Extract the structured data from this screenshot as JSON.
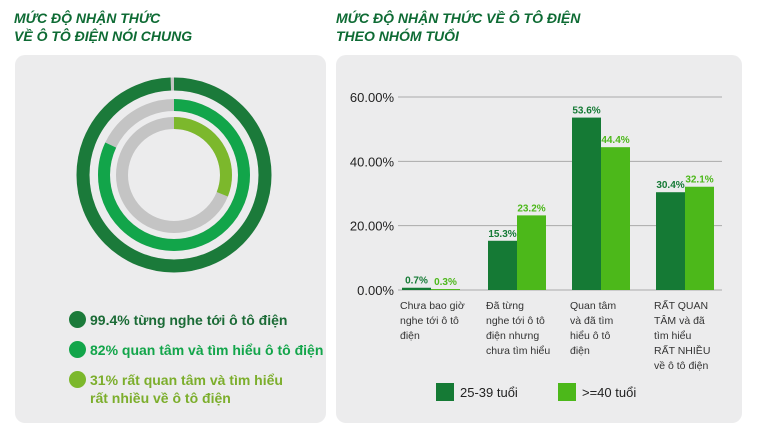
{
  "left": {
    "title_line1": "MỨC ĐỘ NHẬN THỨC",
    "title_line2": "VỀ Ô TÔ ĐIỆN NÓI CHUNG",
    "rings": [
      {
        "value": 99.4,
        "color": "#1b7a3a",
        "label": "99.4% từng nghe tới ô tô điện"
      },
      {
        "value": 82,
        "color": "#12a54a",
        "label": "82% quan tâm và tìm hiểu ô tô điện"
      },
      {
        "value": 31,
        "color": "#7cb82c",
        "label_line1": "31% rất quan tâm và tìm hiểu",
        "label_line2": "rất nhiều về ô tô điện"
      }
    ],
    "ring_bg": "#c4c4c4"
  },
  "chart_data": {
    "type": "bar",
    "title_line1": "MỨC ĐỘ NHẬN THỨC VỀ Ô TÔ ĐIỆN",
    "title_line2": "THEO NHÓM TUỔI",
    "categories": [
      [
        "Chưa bao giờ",
        "nghe tới ô tô",
        "điện"
      ],
      [
        "Đã từng",
        "nghe tới ô tô",
        "điện nhưng",
        "chưa tìm hiểu"
      ],
      [
        "Quan tâm",
        "và đã tìm",
        "hiểu ô tô",
        "điện"
      ],
      [
        "RẤT QUAN",
        "TÂM và đã",
        "tìm hiểu",
        "RẤT NHIỀU",
        "về ô tô điện"
      ]
    ],
    "series": [
      {
        "name": "25-39 tuổi",
        "color": "#157a35",
        "values": [
          0.7,
          15.3,
          53.6,
          30.4
        ],
        "labels": [
          "0.7%",
          "15.3%",
          "53.6%",
          "30.4%"
        ]
      },
      {
        "name": ">=40 tuổi",
        "color": "#4cb81a",
        "values": [
          0.3,
          23.2,
          44.4,
          32.1
        ],
        "labels": [
          "0.3%",
          "23.2%",
          "44.4%",
          "32.1%"
        ]
      }
    ],
    "yticks": [
      "0.00%",
      "20.00%",
      "40.00%",
      "60.00%"
    ],
    "ytick_values": [
      0,
      20,
      40,
      60
    ],
    "ylim": [
      0,
      60
    ],
    "grid": true,
    "legend": "bottom"
  }
}
